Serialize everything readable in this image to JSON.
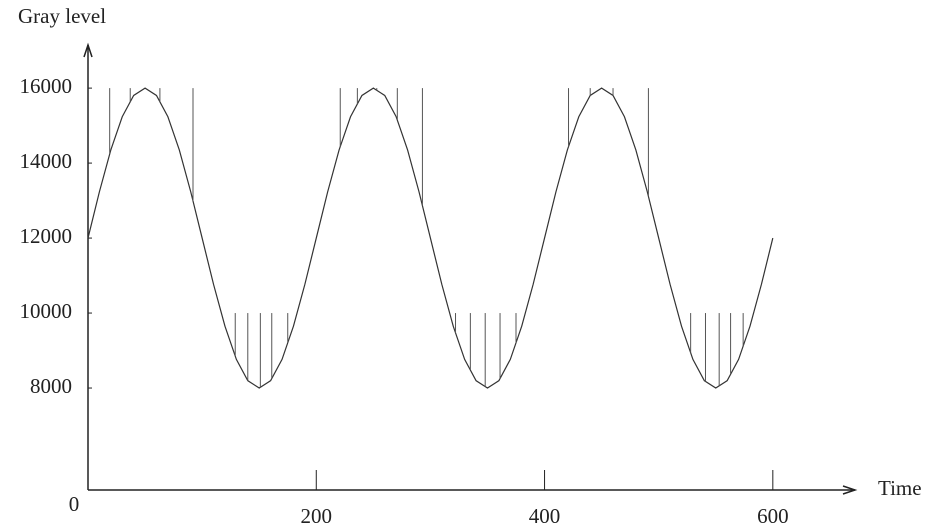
{
  "chart_data": {
    "type": "line",
    "y_label": "Gray level",
    "x_label": "Time",
    "x": [
      0,
      10,
      20,
      30,
      40,
      50,
      60,
      70,
      80,
      90,
      100,
      110,
      120,
      130,
      140,
      150,
      160,
      170,
      180,
      190,
      200,
      210,
      220,
      230,
      240,
      250,
      260,
      270,
      280,
      290,
      300,
      310,
      320,
      330,
      340,
      350,
      360,
      370,
      380,
      390,
      400,
      410,
      420,
      430,
      440,
      450,
      460,
      470,
      480,
      490,
      500,
      510,
      520,
      530,
      540,
      550,
      560,
      570,
      580,
      590,
      600
    ],
    "series": [
      {
        "color": "#333333",
        "values": [
          12000,
          13236,
          14351,
          15236,
          15804,
          16000,
          15804,
          15236,
          14351,
          13236,
          12000,
          10764,
          9649,
          8764,
          8196,
          8000,
          8196,
          8764,
          9649,
          10764,
          12000,
          13236,
          14351,
          15236,
          15804,
          16000,
          15804,
          15236,
          14351,
          13236,
          12000,
          10764,
          9649,
          8764,
          8196,
          8000,
          8196,
          8764,
          9649,
          10764,
          12000,
          13236,
          14351,
          15236,
          15804,
          16000,
          15804,
          15236,
          14351,
          13236,
          12000,
          10764,
          9649,
          8764,
          8196,
          8000,
          8196,
          8764,
          9649,
          10764,
          12000
        ]
      }
    ],
    "sample_lines": [
      {
        "level": 16000,
        "x": [
          19,
          37,
          63,
          92,
          221,
          236,
          253,
          271,
          293,
          421,
          440,
          460,
          491
        ]
      },
      {
        "level": 10000,
        "x": [
          129,
          140,
          151,
          161,
          175,
          322,
          335,
          348,
          361,
          375,
          528,
          541,
          553,
          563,
          574
        ]
      }
    ],
    "xlim": [
      0,
      672
    ],
    "ylim": [
      5280,
      17150
    ],
    "xticks": [
      0,
      200,
      400,
      600
    ],
    "yticks": [
      8000,
      10000,
      12000,
      14000,
      16000
    ]
  }
}
